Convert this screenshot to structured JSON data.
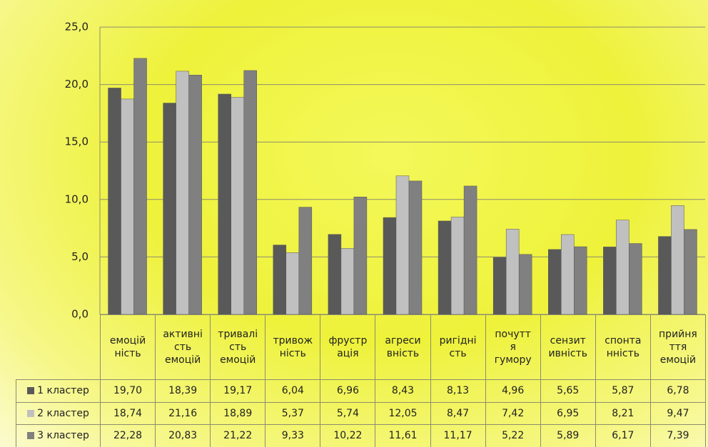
{
  "chart_data": {
    "type": "bar",
    "categories": [
      "емоцій\nність",
      "активні\nсть\nемоцій",
      "тривалі\nсть\nемоцій",
      "тривож\nність",
      "фрустр\nація",
      "агреси\nвність",
      "ригідні\nсть",
      "почутт\nя\nгумору",
      "сензит\nивність",
      "спонта\nнність",
      "прийня\nття\nемоцій"
    ],
    "series": [
      {
        "name": "1 кластер",
        "color": "#595959",
        "values": [
          19.7,
          18.39,
          19.17,
          6.04,
          6.96,
          8.43,
          8.13,
          4.96,
          5.65,
          5.87,
          6.78
        ],
        "value_labels": [
          "19,70",
          "18,39",
          "19,17",
          "6,04",
          "6,96",
          "8,43",
          "8,13",
          "4,96",
          "5,65",
          "5,87",
          "6,78"
        ]
      },
      {
        "name": "2 кластер",
        "color": "#c0c0c0",
        "values": [
          18.74,
          21.16,
          18.89,
          5.37,
          5.74,
          12.05,
          8.47,
          7.42,
          6.95,
          8.21,
          9.47
        ],
        "value_labels": [
          "18,74",
          "21,16",
          "18,89",
          "5,37",
          "5,74",
          "12,05",
          "8,47",
          "7,42",
          "6,95",
          "8,21",
          "9,47"
        ]
      },
      {
        "name": "3 кластер",
        "color": "#808080",
        "values": [
          22.28,
          20.83,
          21.22,
          9.33,
          10.22,
          11.61,
          11.17,
          5.22,
          5.89,
          6.17,
          7.39
        ],
        "value_labels": [
          "22,28",
          "20,83",
          "21,22",
          "9,33",
          "10,22",
          "11,61",
          "11,17",
          "5,22",
          "5,89",
          "6,17",
          "7,39"
        ]
      }
    ],
    "ylim": [
      0,
      25
    ],
    "yticks": [
      {
        "value": 0,
        "label": "0,0"
      },
      {
        "value": 5,
        "label": "5,0"
      },
      {
        "value": 10,
        "label": "10,0"
      },
      {
        "value": 15,
        "label": "15,0"
      },
      {
        "value": 20,
        "label": "20,0"
      },
      {
        "value": 25,
        "label": "25,0"
      }
    ],
    "grid": true
  }
}
